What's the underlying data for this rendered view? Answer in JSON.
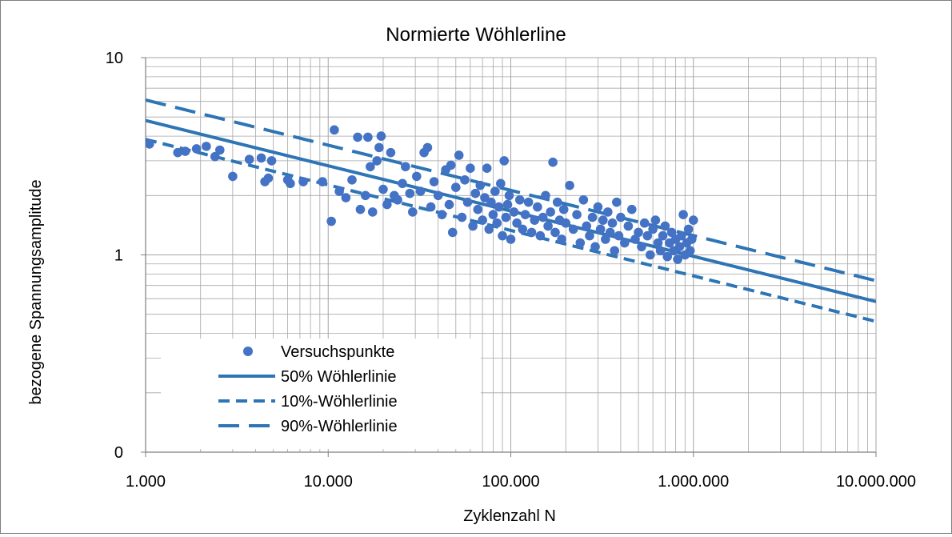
{
  "chart_data": {
    "type": "scatter",
    "title": "Normierte Wöhlerline",
    "xlabel": "Zyklenzahl N",
    "ylabel": "bezogene Spannungsamplitude",
    "x_scale": "log",
    "y_scale": "log",
    "xlim": [
      1000,
      10000000
    ],
    "ylim": [
      0.1,
      10
    ],
    "x_ticks": [
      {
        "value": 1000,
        "label": "1.000"
      },
      {
        "value": 10000,
        "label": "10.000"
      },
      {
        "value": 100000,
        "label": "100.000"
      },
      {
        "value": 1000000,
        "label": "1.000.000"
      },
      {
        "value": 10000000,
        "label": "10.000.000"
      }
    ],
    "y_ticks": [
      {
        "value": 10,
        "label": "10"
      },
      {
        "value": 1,
        "label": "1"
      },
      {
        "value": 0.1,
        "label": "0"
      }
    ],
    "grid": true,
    "legend_position": "bottom-left",
    "colors": {
      "points": "#4472c4",
      "lines": "#2e75b6",
      "grid": "#a6a6a6",
      "frame": "#7f7f7f",
      "text": "#000000"
    },
    "series": [
      {
        "name": "Versuchspunkte",
        "kind": "scatter",
        "points": [
          [
            1050,
            3.65
          ],
          [
            1500,
            3.3
          ],
          [
            1650,
            3.35
          ],
          [
            1900,
            3.45
          ],
          [
            2150,
            3.55
          ],
          [
            2400,
            3.15
          ],
          [
            2550,
            3.4
          ],
          [
            3000,
            2.5
          ],
          [
            3700,
            3.05
          ],
          [
            4300,
            3.1
          ],
          [
            4500,
            2.35
          ],
          [
            4700,
            2.45
          ],
          [
            4900,
            3.0
          ],
          [
            6000,
            2.4
          ],
          [
            6200,
            2.3
          ],
          [
            7300,
            2.35
          ],
          [
            9300,
            2.35
          ],
          [
            10400,
            1.48
          ],
          [
            10800,
            4.3
          ],
          [
            11500,
            2.1
          ],
          [
            12500,
            1.95
          ],
          [
            13500,
            2.4
          ],
          [
            14500,
            3.95
          ],
          [
            15000,
            1.7
          ],
          [
            16000,
            2.0
          ],
          [
            16500,
            3.95
          ],
          [
            17000,
            2.8
          ],
          [
            17500,
            1.65
          ],
          [
            18500,
            3.0
          ],
          [
            19000,
            3.5
          ],
          [
            19500,
            4.0
          ],
          [
            20000,
            2.15
          ],
          [
            21000,
            1.8
          ],
          [
            22000,
            3.3
          ],
          [
            23000,
            2.0
          ],
          [
            24000,
            1.9
          ],
          [
            25500,
            2.3
          ],
          [
            26500,
            2.8
          ],
          [
            28000,
            2.05
          ],
          [
            29000,
            1.65
          ],
          [
            30500,
            2.5
          ],
          [
            32000,
            2.1
          ],
          [
            33500,
            3.3
          ],
          [
            35000,
            3.5
          ],
          [
            36500,
            1.75
          ],
          [
            38000,
            2.35
          ],
          [
            40000,
            2.0
          ],
          [
            42000,
            1.6
          ],
          [
            44000,
            2.7
          ],
          [
            46000,
            1.8
          ],
          [
            47000,
            2.85
          ],
          [
            48000,
            1.3
          ],
          [
            50000,
            2.2
          ],
          [
            52000,
            3.2
          ],
          [
            54000,
            1.55
          ],
          [
            56000,
            2.4
          ],
          [
            58000,
            1.85
          ],
          [
            60000,
            2.75
          ],
          [
            62000,
            1.4
          ],
          [
            64000,
            2.05
          ],
          [
            66000,
            1.7
          ],
          [
            68000,
            2.25
          ],
          [
            70000,
            1.5
          ],
          [
            72000,
            1.95
          ],
          [
            74000,
            2.75
          ],
          [
            76000,
            1.35
          ],
          [
            78000,
            1.85
          ],
          [
            80000,
            1.6
          ],
          [
            82000,
            2.1
          ],
          [
            84000,
            1.45
          ],
          [
            86000,
            1.75
          ],
          [
            88000,
            2.3
          ],
          [
            90000,
            1.25
          ],
          [
            92000,
            3.0
          ],
          [
            94000,
            1.55
          ],
          [
            96000,
            1.8
          ],
          [
            98000,
            2.0
          ],
          [
            100000,
            1.2
          ],
          [
            104000,
            1.65
          ],
          [
            108000,
            1.45
          ],
          [
            112000,
            1.9
          ],
          [
            116000,
            1.35
          ],
          [
            120000,
            1.6
          ],
          [
            125000,
            1.85
          ],
          [
            130000,
            1.3
          ],
          [
            135000,
            1.5
          ],
          [
            140000,
            1.75
          ],
          [
            145000,
            1.25
          ],
          [
            150000,
            1.55
          ],
          [
            155000,
            2.0
          ],
          [
            160000,
            1.4
          ],
          [
            165000,
            1.65
          ],
          [
            170000,
            2.95
          ],
          [
            175000,
            1.3
          ],
          [
            180000,
            1.85
          ],
          [
            185000,
            1.5
          ],
          [
            190000,
            1.2
          ],
          [
            195000,
            1.7
          ],
          [
            200000,
            1.45
          ],
          [
            210000,
            2.25
          ],
          [
            220000,
            1.35
          ],
          [
            230000,
            1.6
          ],
          [
            240000,
            1.15
          ],
          [
            250000,
            1.9
          ],
          [
            260000,
            1.4
          ],
          [
            270000,
            1.25
          ],
          [
            280000,
            1.55
          ],
          [
            290000,
            1.1
          ],
          [
            300000,
            1.75
          ],
          [
            310000,
            1.35
          ],
          [
            320000,
            1.5
          ],
          [
            330000,
            1.2
          ],
          [
            340000,
            1.65
          ],
          [
            350000,
            1.3
          ],
          [
            360000,
            1.45
          ],
          [
            370000,
            1.05
          ],
          [
            380000,
            1.85
          ],
          [
            390000,
            1.25
          ],
          [
            400000,
            1.55
          ],
          [
            420000,
            1.15
          ],
          [
            440000,
            1.4
          ],
          [
            460000,
            1.7
          ],
          [
            480000,
            1.2
          ],
          [
            500000,
            1.3
          ],
          [
            520000,
            1.1
          ],
          [
            540000,
            1.45
          ],
          [
            560000,
            1.25
          ],
          [
            580000,
            1.0
          ],
          [
            600000,
            1.35
          ],
          [
            620000,
            1.5
          ],
          [
            640000,
            1.15
          ],
          [
            660000,
            1.05
          ],
          [
            680000,
            1.25
          ],
          [
            700000,
            1.4
          ],
          [
            720000,
            0.98
          ],
          [
            740000,
            1.15
          ],
          [
            760000,
            1.3
          ],
          [
            780000,
            1.05
          ],
          [
            800000,
            1.2
          ],
          [
            820000,
            0.95
          ],
          [
            840000,
            1.1
          ],
          [
            860000,
            1.25
          ],
          [
            880000,
            1.6
          ],
          [
            900000,
            1.0
          ],
          [
            920000,
            1.15
          ],
          [
            940000,
            1.35
          ],
          [
            960000,
            1.05
          ],
          [
            980000,
            1.2
          ],
          [
            1000000,
            1.5
          ]
        ]
      },
      {
        "name": "50% Wöhlerlinie",
        "kind": "line",
        "style": "solid",
        "points": [
          [
            1000,
            4.8
          ],
          [
            10000000,
            0.58
          ]
        ]
      },
      {
        "name": "10%-Wöhlerlinie",
        "kind": "line",
        "style": "short-dash",
        "points": [
          [
            1000,
            3.85
          ],
          [
            10000000,
            0.46
          ]
        ]
      },
      {
        "name": "90%-Wöhlerlinie",
        "kind": "line",
        "style": "long-dash",
        "points": [
          [
            1000,
            6.1
          ],
          [
            10000000,
            0.74
          ]
        ]
      }
    ]
  }
}
